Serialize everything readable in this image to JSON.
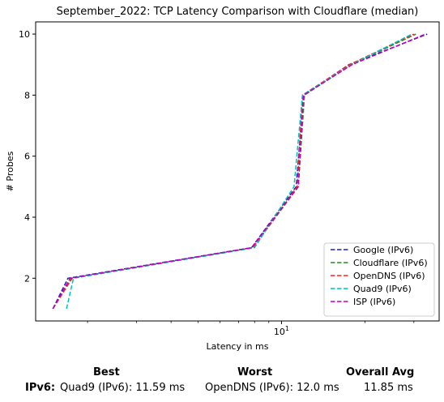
{
  "chart_data": {
    "type": "line",
    "title": "September_2022: TCP Latency Comparison with Cloudflare (median)",
    "xlabel": "Latency in ms",
    "ylabel": "# Probes",
    "xscale": "log",
    "xlim": [
      1.3,
      37
    ],
    "ylim": [
      0.6,
      10.4
    ],
    "x_ticks": [
      {
        "value": 10,
        "label": "10^1"
      }
    ],
    "y_ticks": [
      2,
      4,
      6,
      8,
      10
    ],
    "grid": false,
    "legend_position": "lower right",
    "series": [
      {
        "name": "Google (IPv6)",
        "color": "#1f1fbf",
        "points": [
          [
            1.5,
            1
          ],
          [
            1.7,
            2
          ],
          [
            7.8,
            3
          ],
          [
            11.3,
            5
          ],
          [
            12.0,
            8
          ],
          [
            17.5,
            9
          ],
          [
            33.5,
            10
          ]
        ]
      },
      {
        "name": "Cloudflare (IPv6)",
        "color": "#2a8a2a",
        "points": [
          [
            1.5,
            1
          ],
          [
            1.75,
            2
          ],
          [
            7.9,
            3
          ],
          [
            11.5,
            5
          ],
          [
            12.1,
            8
          ],
          [
            17.8,
            9
          ],
          [
            30.5,
            10
          ]
        ]
      },
      {
        "name": "OpenDNS (IPv6)",
        "color": "#ff2020",
        "points": [
          [
            1.5,
            1
          ],
          [
            1.76,
            2
          ],
          [
            7.9,
            3
          ],
          [
            11.4,
            5
          ],
          [
            11.9,
            8
          ],
          [
            17.6,
            9
          ],
          [
            30.0,
            10
          ]
        ]
      },
      {
        "name": "Quad9 (IPv6)",
        "color": "#00c0c0",
        "points": [
          [
            1.68,
            1
          ],
          [
            1.78,
            2
          ],
          [
            8.0,
            3
          ],
          [
            11.1,
            5
          ],
          [
            11.9,
            8
          ],
          [
            17.9,
            9
          ],
          [
            29.5,
            10
          ]
        ]
      },
      {
        "name": "ISP (IPv6)",
        "color": "#c000c0",
        "points": [
          [
            1.5,
            1
          ],
          [
            1.73,
            2
          ],
          [
            7.8,
            3
          ],
          [
            11.5,
            5
          ],
          [
            12.0,
            8
          ],
          [
            18.0,
            9
          ],
          [
            33.0,
            10
          ]
        ]
      }
    ]
  },
  "summary": {
    "best_header": "Best",
    "worst_header": "Worst",
    "avg_header": "Overall Avg",
    "row_label": "IPv6:",
    "best_value": "Quad9 (IPv6): 11.59 ms",
    "worst_value": "OpenDNS (IPv6): 12.0 ms",
    "avg_value": "11.85 ms"
  }
}
